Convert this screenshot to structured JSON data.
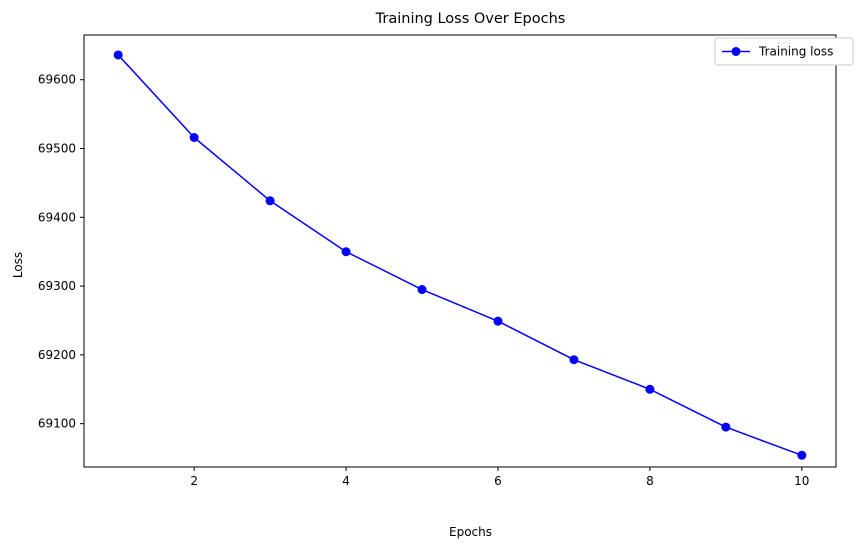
{
  "chart_data": {
    "type": "line",
    "title": "Training Loss Over Epochs",
    "xlabel": "Epochs",
    "ylabel": "Loss",
    "x": [
      1,
      2,
      3,
      4,
      5,
      6,
      7,
      8,
      9,
      10
    ],
    "xlim": [
      0.55,
      10.45
    ],
    "ylim": [
      69037,
      69665
    ],
    "xticks": [
      2,
      4,
      6,
      8,
      10
    ],
    "yticks": [
      69100,
      69200,
      69300,
      69400,
      69500,
      69600
    ],
    "grid": false,
    "legend_position": "top-right",
    "series": [
      {
        "name": "Training loss",
        "color": "#0000ff",
        "marker": "circle",
        "values": [
          69636,
          69516,
          69424,
          69350,
          69295,
          69249,
          69193,
          69150,
          69095,
          69054
        ]
      }
    ]
  }
}
